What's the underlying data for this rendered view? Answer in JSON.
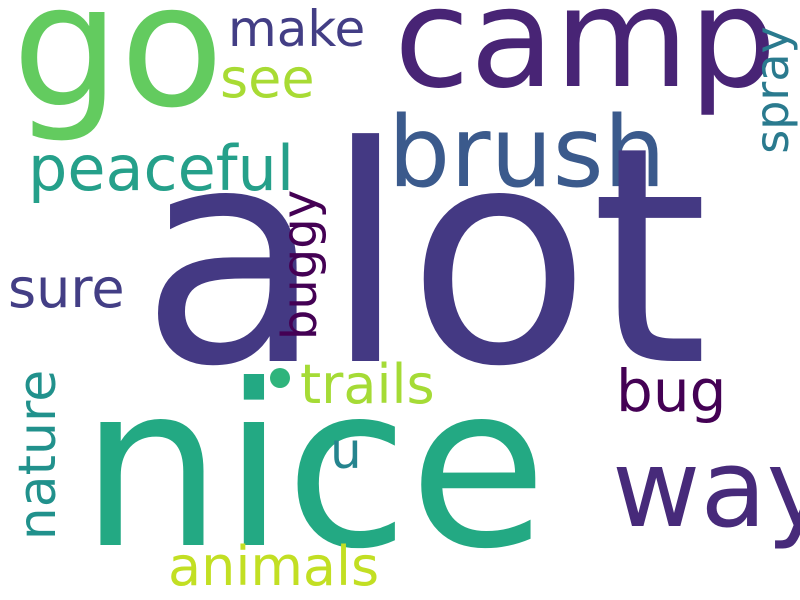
{
  "palette": {
    "dark_purple": "#482475",
    "indigo": "#453781",
    "blue": "#3b528b",
    "teal": "#21918c",
    "sea_green": "#22a884",
    "green": "#5ec962",
    "lime": "#addc30",
    "yellow": "#bddf26",
    "deep_plum": "#440154"
  },
  "words": {
    "alot": {
      "text": "alot",
      "color": "#443983"
    },
    "nice": {
      "text": "nice",
      "color": "#23a983"
    },
    "go": {
      "text": "go",
      "color": "#63cb5f"
    },
    "camp": {
      "text": "camp",
      "color": "#482475"
    },
    "brush": {
      "text": "brush",
      "color": "#3b5a8c"
    },
    "way": {
      "text": "way",
      "color": "#472a7a"
    },
    "peaceful": {
      "text": "peaceful",
      "color": "#25a08a"
    },
    "nature": {
      "text": "nature",
      "color": "#21918c"
    },
    "see": {
      "text": "see",
      "color": "#a8db34"
    },
    "make": {
      "text": "make",
      "color": "#433e85"
    },
    "spray": {
      "text": "spray",
      "color": "#2a7a8e"
    },
    "sure": {
      "text": "sure",
      "color": "#433e85"
    },
    "buggy": {
      "text": "buggy",
      "color": "#440154"
    },
    "trails": {
      "text": "trails",
      "color": "#a5db36"
    },
    "bug": {
      "text": "bug",
      "color": "#440154"
    },
    "u": {
      "text": "u",
      "color": "#25848e"
    },
    "animals": {
      "text": "animals",
      "color": "#c2df23"
    },
    "dot": {
      "color": "#2fb47c"
    }
  }
}
